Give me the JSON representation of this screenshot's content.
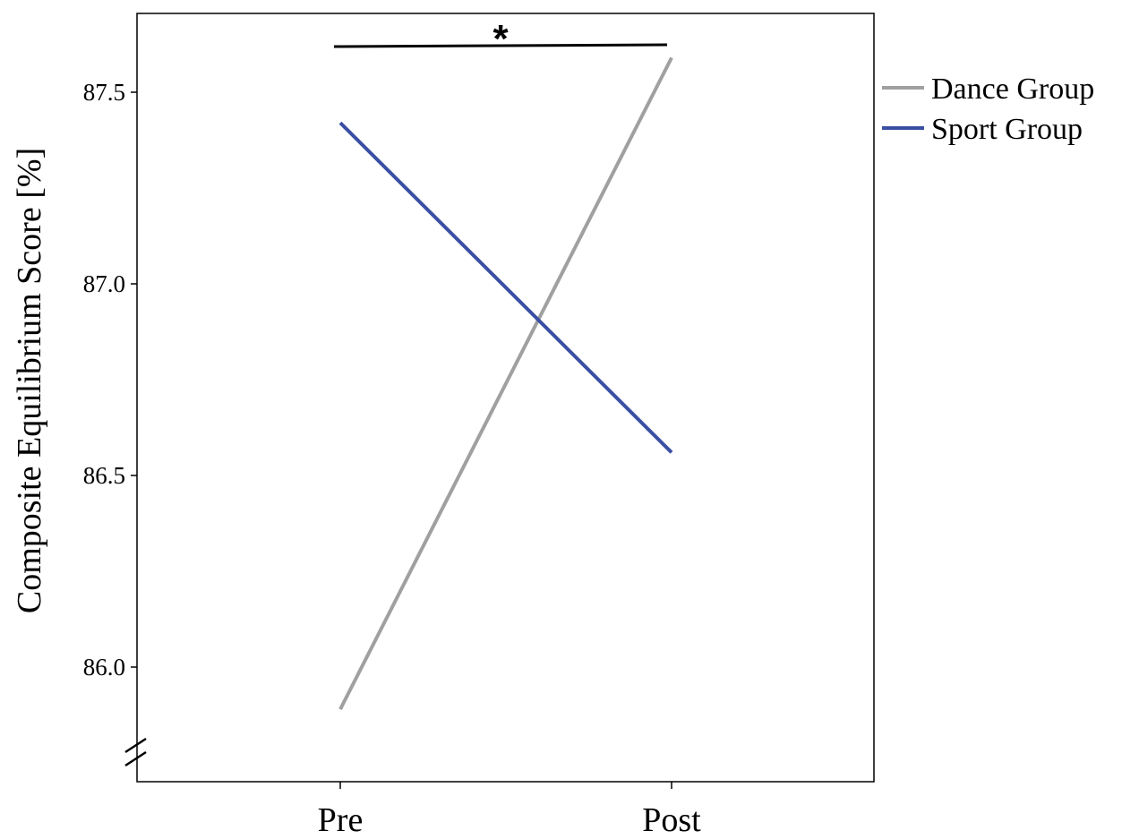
{
  "chart_data": {
    "type": "line",
    "title": "",
    "xlabel": "",
    "ylabel": "Composite Equilibrium Score [%]",
    "categories": [
      "Pre",
      "Post"
    ],
    "ylim": [
      85.7,
      87.7
    ],
    "yticks": [
      "86.0",
      "86.5",
      "87.0",
      "87.5"
    ],
    "axis_break": true,
    "grid": false,
    "legend_position": "right",
    "series": [
      {
        "name": "Dance Group",
        "values": [
          85.89,
          87.59
        ],
        "color": "#a0a0a0"
      },
      {
        "name": "Sport Group",
        "values": [
          87.42,
          86.56
        ],
        "color": "#3a4fa3"
      }
    ],
    "annotation": {
      "text": "*",
      "from": "Pre",
      "to": "Post"
    }
  }
}
